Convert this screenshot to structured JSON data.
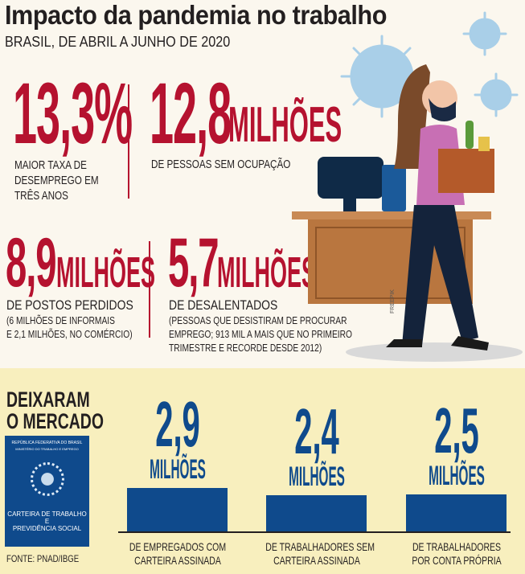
{
  "header": {
    "title": "Impacto da pandemia no trabalho",
    "subtitle": "BRASIL, DE ABRIL A JUNHO DE 2020"
  },
  "stats": [
    {
      "value": "13,3%",
      "unit": "",
      "lines": [
        "MAIOR TAXA DE",
        "DESEMPREGO EM",
        "TRÊS ANOS"
      ]
    },
    {
      "value": "12,8",
      "unit": "MILHÕES",
      "lines": [
        "DE PESSOAS SEM OCUPAÇÃO"
      ]
    },
    {
      "value": "8,9",
      "unit": "MILHÕES",
      "lines": [
        "DE POSTOS PERDIDOS"
      ],
      "notes": [
        "(6 MILHÕES DE INFORMAIS",
        "E 2,1 MILHÕES, NO COMÉRCIO)"
      ]
    },
    {
      "value": "5,7",
      "unit": "MILHÕES",
      "lines": [
        "DE DESALENTADOS"
      ],
      "notes": [
        "(PESSOAS QUE DESISTIRAM DE PROCURAR",
        "EMPREGO; 913 MIL A MAIS QUE NO PRIMEIRO",
        "TRIMESTRE E RECORDE DESDE 2012)"
      ]
    }
  ],
  "illustration": {
    "credit": "FREEPIK"
  },
  "card": {
    "line1": "REPÚBLICA FEDERATIVA DO BRASIL",
    "line2": "MINISTÉRIO DO TRABALHO E EMPREGO",
    "title1": "CARTEIRA DE TRABALHO",
    "title2": "E",
    "title3": "PREVIDÊNCIA SOCIAL"
  },
  "section": {
    "title1": "DEIXARAM",
    "title2": "O MERCADO",
    "source": "FONTE: PNAD/IBGE"
  },
  "colors": {
    "red": "#b5122f",
    "blue": "#0f4a8c",
    "background": "#fbf7ee",
    "bottom_background": "#f8efbe"
  },
  "chart_data": {
    "type": "bar",
    "title": "DEIXARAM O MERCADO",
    "categories": [
      [
        "DE EMPREGADOS COM",
        "CARTEIRA ASSINADA"
      ],
      [
        "DE TRABALHADORES SEM",
        "CARTEIRA ASSINADA"
      ],
      [
        "DE TRABALHADORES",
        "POR CONTA PRÓPRIA"
      ]
    ],
    "values": [
      2.9,
      2.4,
      2.5
    ],
    "value_labels": [
      "2,9",
      "2,4",
      "2,5"
    ],
    "unit": "MILHÕES",
    "grid": false
  }
}
